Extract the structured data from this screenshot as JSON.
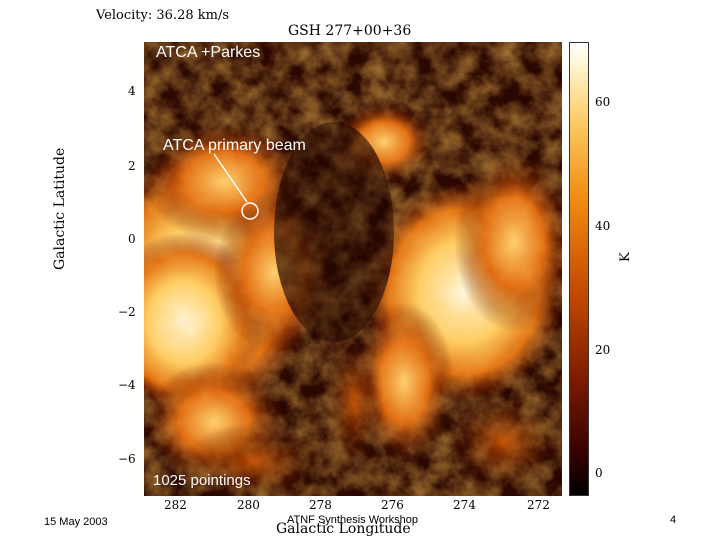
{
  "header": {
    "velocity": "Velocity: 36.28 km/s",
    "map_title": "GSH 277+00+36"
  },
  "map": {
    "overlay_label": "ATCA +Parkes",
    "beam_label": "ATCA primary beam",
    "pointings_label": "1025 pointings",
    "colormap": [
      "#200400",
      "#7a1a00",
      "#c54a00",
      "#f08a10",
      "#fcc860",
      "#fff5d0"
    ]
  },
  "axes": {
    "y_label": "Galactic Latitude",
    "y_ticks": [
      "4",
      "2",
      "0",
      "−2",
      "−4",
      "−6"
    ],
    "x_label": "Galactic Longitude",
    "x_ticks": [
      "282",
      "280",
      "278",
      "276",
      "274",
      "272"
    ]
  },
  "colorbar": {
    "ticks": [
      "60",
      "40",
      "20",
      "0"
    ],
    "unit": "K"
  },
  "footer": {
    "date": "15 May 2003",
    "event": "ATNF Synthesis Workshop",
    "page": "4"
  }
}
